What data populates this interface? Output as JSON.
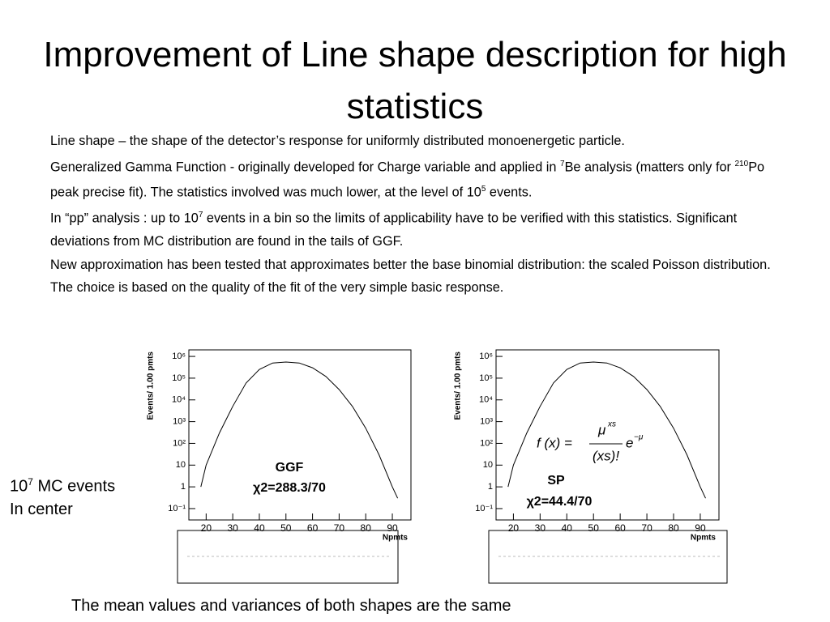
{
  "title": "Improvement of Line shape description for high statistics",
  "body": [
    [
      {
        "text": "Line shape – the shape of the detector’s response for uniformly distributed monoenergetic particle."
      }
    ],
    [
      {
        "text": "Generalized Gamma Function - originally developed for Charge variable and applied in "
      },
      {
        "sup": "7"
      },
      {
        "text": "Be analysis (matters only for "
      },
      {
        "sup": "210"
      },
      {
        "text": "Po peak precise fit). The statistics involved was much lower, at the level of 10"
      },
      {
        "sup": "5"
      },
      {
        "text": " events."
      }
    ],
    [
      {
        "text": "In “pp” analysis : up to 10"
      },
      {
        "sup": "7"
      },
      {
        "text": "  events in a bin so the limits of applicability have to be verified with this statistics. Significant deviations from MC distribution are found in the tails of GGF."
      }
    ],
    [
      {
        "text": "New approximation has been tested that approximates better the base binomial distribution: the scaled Poisson distribution. The choice is based on the quality of the fit of the very simple basic response."
      }
    ]
  ],
  "side_note": [
    {
      "text": "10"
    },
    {
      "sup": "7"
    },
    {
      "text": " MC events"
    }
  ],
  "side_note_2": "In center",
  "caption": "The mean values and variances of both shapes are the same",
  "formula": {
    "lhs": "f (x) =",
    "numerator": "μ",
    "numerator_sup": "xs",
    "denominator": "(xs)!",
    "factor": "e",
    "factor_sup": "−μ"
  },
  "chart_data": [
    {
      "type": "line",
      "xlabel": "Npmts",
      "ylabel": "Events/ 1.00 pmts",
      "log_y": true,
      "xlim": [
        13.5,
        97
      ],
      "ylim": [
        0.03,
        2000000
      ],
      "xticks": [
        20,
        30,
        40,
        50,
        60,
        70,
        80,
        90
      ],
      "yticks": [
        {
          "value": 0.1,
          "label": "10⁻¹"
        },
        1,
        10,
        {
          "value": 100,
          "label": "10²"
        },
        {
          "value": 1000,
          "label": "10³"
        },
        {
          "value": 10000,
          "label": "10⁴"
        },
        {
          "value": 100000,
          "label": "10⁵"
        },
        {
          "value": 1000000,
          "label": "10⁶"
        }
      ],
      "x": [
        18,
        20,
        25,
        30,
        35,
        40,
        45,
        50,
        55,
        60,
        65,
        70,
        75,
        80,
        85,
        90,
        92
      ],
      "values": [
        1,
        10,
        300,
        5000,
        60000,
        250000,
        500000,
        550000,
        500000,
        300000,
        120000,
        30000,
        5000,
        500,
        30,
        1,
        0.3
      ],
      "annotations": [
        "GGF",
        "χ2=288.3/70"
      ]
    },
    {
      "type": "line",
      "xlabel": "Npmts",
      "ylabel": "Events/ 1.00 pmts",
      "log_y": true,
      "xlim": [
        13.5,
        97
      ],
      "ylim": [
        0.03,
        2000000
      ],
      "xticks": [
        20,
        30,
        40,
        50,
        60,
        70,
        80,
        90
      ],
      "yticks": [
        {
          "value": 0.1,
          "label": "10⁻¹"
        },
        1,
        10,
        {
          "value": 100,
          "label": "10²"
        },
        {
          "value": 1000,
          "label": "10³"
        },
        {
          "value": 10000,
          "label": "10⁴"
        },
        {
          "value": 100000,
          "label": "10⁵"
        },
        {
          "value": 1000000,
          "label": "10⁶"
        }
      ],
      "x": [
        18,
        20,
        25,
        30,
        35,
        40,
        45,
        50,
        55,
        60,
        65,
        70,
        75,
        80,
        85,
        90,
        92
      ],
      "values": [
        1,
        10,
        300,
        5000,
        60000,
        250000,
        500000,
        550000,
        500000,
        300000,
        120000,
        30000,
        5000,
        500,
        30,
        1,
        0.3
      ],
      "annotations": [
        "SP",
        "χ2=44.4/70"
      ]
    }
  ]
}
